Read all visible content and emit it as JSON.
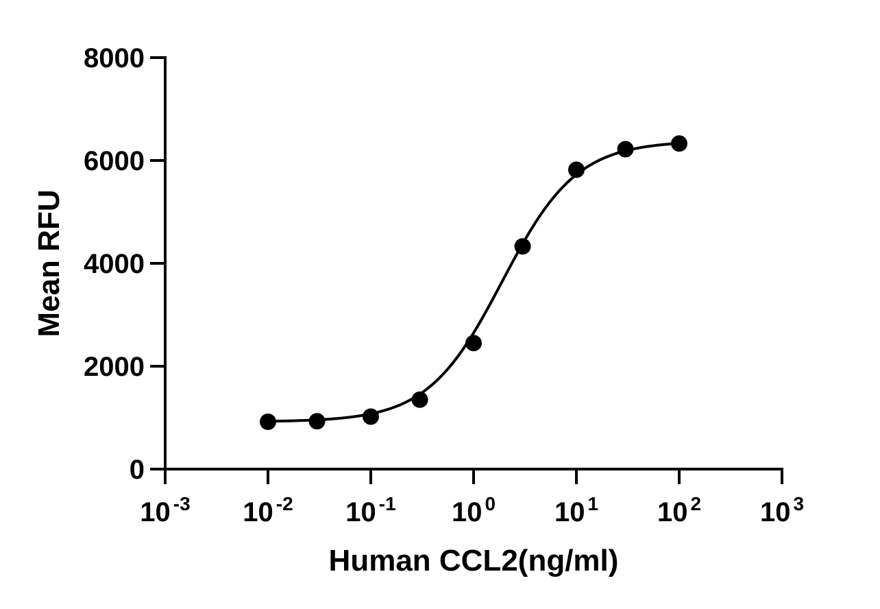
{
  "chart_data": {
    "type": "scatter",
    "title": "",
    "xlabel": "Human CCL2(ng/ml)",
    "ylabel": "Mean RFU",
    "xscale": "log",
    "xlim": [
      0.001,
      1000
    ],
    "ylim": [
      0,
      8000
    ],
    "x_ticks": [
      {
        "base": "10",
        "exp": "-3",
        "value": 0.001
      },
      {
        "base": "10",
        "exp": "-2",
        "value": 0.01
      },
      {
        "base": "10",
        "exp": "-1",
        "value": 0.1
      },
      {
        "base": "10",
        "exp": "0",
        "value": 1
      },
      {
        "base": "10",
        "exp": "1",
        "value": 10
      },
      {
        "base": "10",
        "exp": "2",
        "value": 100
      },
      {
        "base": "10",
        "exp": "3",
        "value": 1000
      }
    ],
    "y_ticks": [
      "0",
      "2000",
      "4000",
      "6000",
      "8000"
    ],
    "grid": false,
    "legend": "none",
    "series": [
      {
        "x": [
          0.01,
          0.03,
          0.1,
          0.3,
          1,
          3,
          10,
          30,
          100
        ],
        "y": [
          920,
          930,
          1020,
          1350,
          2450,
          4330,
          5820,
          6220,
          6330
        ]
      }
    ],
    "fit": {
      "type": "4PL",
      "bottom": 920,
      "top": 6380,
      "ec50": 1.9,
      "hill": 1.2,
      "x_range": [
        0.01,
        100
      ]
    }
  }
}
